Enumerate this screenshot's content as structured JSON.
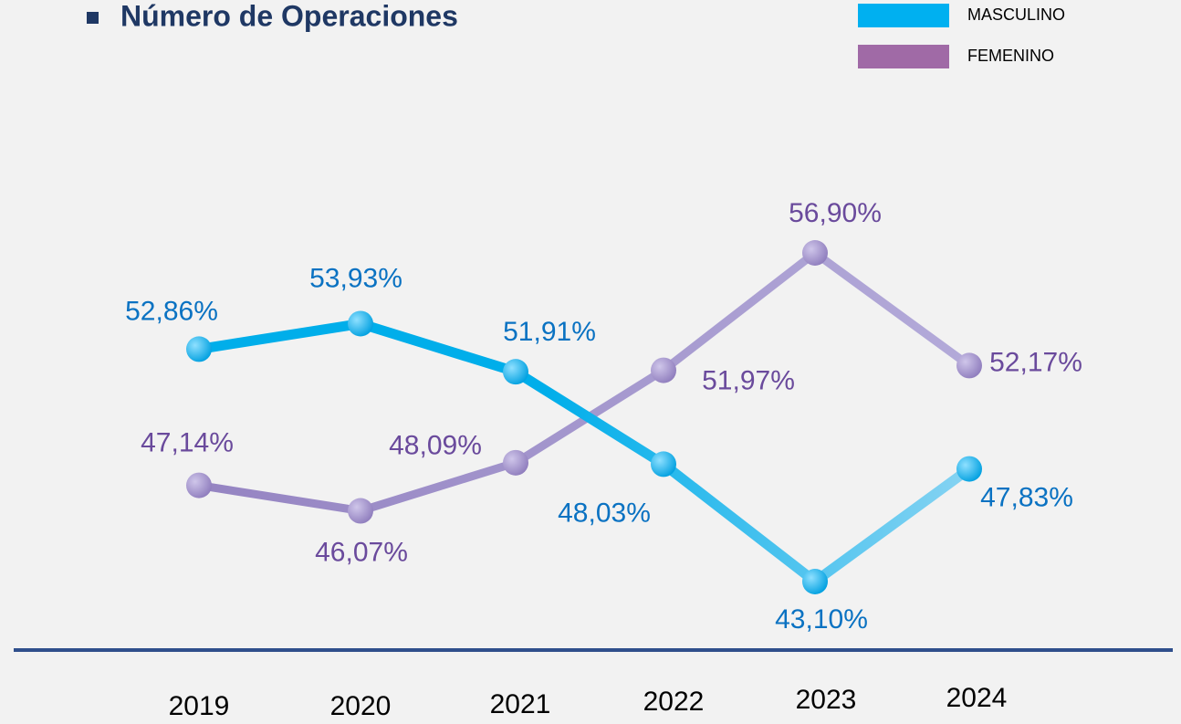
{
  "chart_data": {
    "type": "line",
    "title": "Número de Operaciones",
    "categories": [
      "2019",
      "2020",
      "2021",
      "2022",
      "2023",
      "2024"
    ],
    "series": [
      {
        "name": "MASCULINO",
        "color": "#00b0f0",
        "legend_color": "#00b0f0",
        "label_color": "#0a72c2",
        "values": [
          52.86,
          53.93,
          51.91,
          48.03,
          43.1,
          47.83
        ],
        "value_labels": [
          "52,86%",
          "53,93%",
          "51,91%",
          "48,03%",
          "43,10%",
          "47,83%"
        ]
      },
      {
        "name": "FEMENINO",
        "color": "#9d8cc8",
        "legend_color": "#a06aa6",
        "label_color": "#6a4a9c",
        "values": [
          47.14,
          46.07,
          48.09,
          51.97,
          56.9,
          52.17
        ],
        "value_labels": [
          "47,14%",
          "46,07%",
          "48,09%",
          "51,97%",
          "56,90%",
          "52,17%"
        ]
      }
    ]
  }
}
